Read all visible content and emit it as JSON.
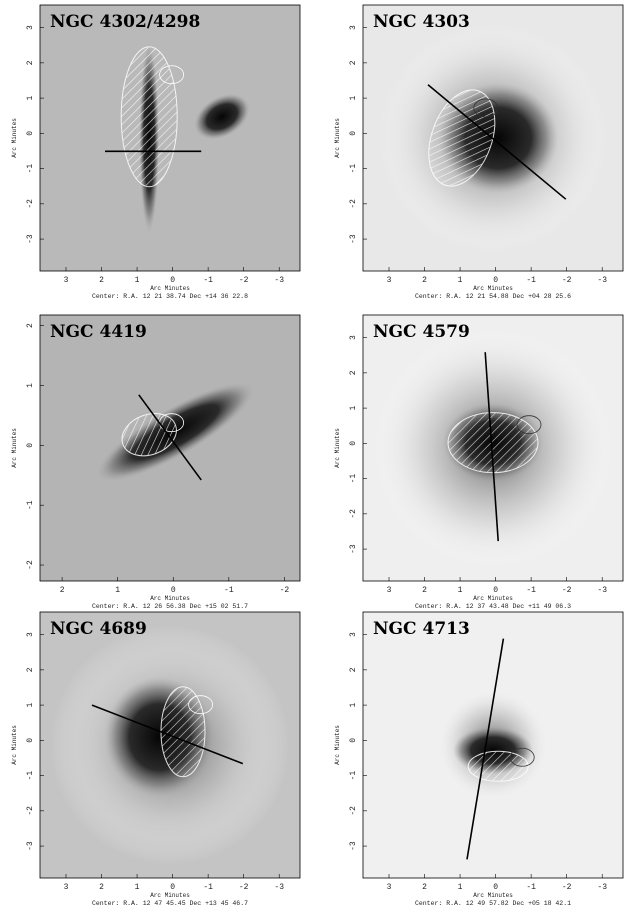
{
  "panels": [
    {
      "title": "NGC 4302/4298",
      "xticks": [
        "3",
        "2",
        "1",
        "0",
        "-1",
        "-2",
        "-3"
      ],
      "yticks": [
        "3",
        "2",
        "1",
        "0",
        "-1",
        "-2",
        "-3"
      ],
      "xlabel": "Arc Minutes",
      "ylabel": "Arc Minutes",
      "center": "Center:  R.A. 12 21 38.74    Dec  +14 36 22.8"
    },
    {
      "title": "NGC 4303",
      "xticks": [
        "3",
        "2",
        "1",
        "0",
        "-1",
        "-2",
        "-3"
      ],
      "yticks": [
        "3",
        "2",
        "1",
        "0",
        "-1",
        "-2",
        "-3"
      ],
      "xlabel": "Arc Minutes",
      "ylabel": "Arc Minutes",
      "center": "Center:  R.A. 12 21 54.88    Dec  +04 28 25.6"
    },
    {
      "title": "NGC 4419",
      "xticks": [
        "2",
        "1",
        "0",
        "-1",
        "-2"
      ],
      "yticks": [
        "2",
        "1",
        "0",
        "-1",
        "-2"
      ],
      "xlabel": "Arc Minutes",
      "ylabel": "Arc Minutes",
      "center": "Center:  R.A. 12 26 56.38    Dec  +15 02 51.7"
    },
    {
      "title": "NGC 4579",
      "xticks": [
        "3",
        "2",
        "1",
        "0",
        "-1",
        "-2",
        "-3"
      ],
      "yticks": [
        "3",
        "2",
        "1",
        "0",
        "-1",
        "-2",
        "-3"
      ],
      "xlabel": "Arc Minutes",
      "ylabel": "Arc Minutes",
      "center": "Center:  R.A. 12 37 43.48    Dec  +11 49 06.3"
    },
    {
      "title": "NGC 4689",
      "xticks": [
        "3",
        "2",
        "1",
        "0",
        "-1",
        "-2",
        "-3"
      ],
      "yticks": [
        "3",
        "2",
        "1",
        "0",
        "-1",
        "-2",
        "-3"
      ],
      "xlabel": "Arc Minutes",
      "ylabel": "Arc Minutes",
      "center": "Center:  R.A. 12 47 45.45    Dec  +13 45 46.7"
    },
    {
      "title": "NGC 4713",
      "xticks": [
        "3",
        "2",
        "1",
        "0",
        "-1",
        "-2",
        "-3"
      ],
      "yticks": [
        "3",
        "2",
        "1",
        "0",
        "-1",
        "-2",
        "-3"
      ],
      "xlabel": "Arc Minutes",
      "ylabel": "Arc Minutes",
      "center": "Center:  R.A. 12 49 57.82    Dec  +05 18 42.1"
    }
  ]
}
